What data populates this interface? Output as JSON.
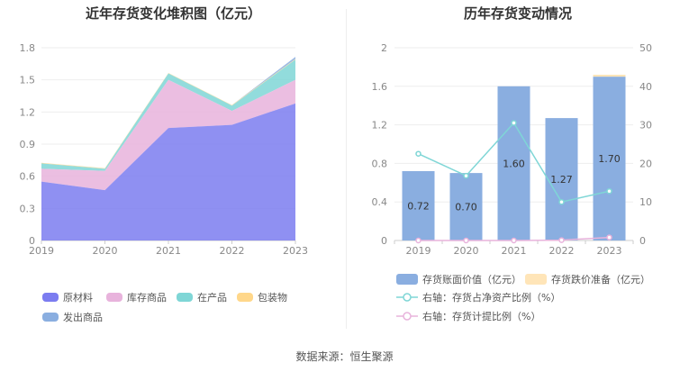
{
  "source_text": "数据来源：恒生聚源",
  "chart_data": [
    {
      "type": "area",
      "stacked": true,
      "title": "近年存货变化堆积图（亿元）",
      "x": [
        "2019",
        "2020",
        "2021",
        "2022",
        "2023"
      ],
      "y_ticks": [
        "0",
        "0.3",
        "0.6",
        "0.9",
        "1.2",
        "1.5",
        "1.8"
      ],
      "ylim": [
        0,
        1.8
      ],
      "grid": true,
      "legend_position": "bottom-left",
      "series": [
        {
          "name": "原材料",
          "color": "#7b7cf0",
          "values": [
            0.55,
            0.47,
            1.05,
            1.08,
            1.28
          ]
        },
        {
          "name": "库存商品",
          "color": "#e8b3dc",
          "values": [
            0.12,
            0.18,
            0.45,
            0.13,
            0.22
          ]
        },
        {
          "name": "在产品",
          "color": "#7fd6d6",
          "values": [
            0.05,
            0.02,
            0.06,
            0.05,
            0.19
          ]
        },
        {
          "name": "包装物",
          "color": "#ffd78a",
          "values": [
            0.005,
            0.005,
            0.005,
            0.005,
            0.005
          ]
        },
        {
          "name": "发出商品",
          "color": "#8aaee0",
          "values": [
            0.0,
            0.0,
            0.0,
            0.0,
            0.02
          ]
        }
      ]
    },
    {
      "type": "bar",
      "title": "历年存货变动情况",
      "categories": [
        "2019",
        "2020",
        "2021",
        "2022",
        "2023"
      ],
      "y_left_ticks": [
        "0",
        "0.4",
        "0.8",
        "1.2",
        "1.6",
        "2"
      ],
      "ylim_left": [
        0,
        2
      ],
      "y_right_ticks": [
        "0",
        "10",
        "20",
        "30",
        "40",
        "50"
      ],
      "ylim_right": [
        0,
        50
      ],
      "grid": true,
      "legend_position": "bottom",
      "bars": [
        {
          "name": "存货账面价值（亿元）",
          "color": "#8aaee0",
          "values": [
            0.72,
            0.7,
            1.6,
            1.27,
            1.7
          ],
          "labels": [
            "0.72",
            "0.70",
            "1.60",
            "1.27",
            "1.70"
          ]
        },
        {
          "name": "存货跌价准备（亿元）",
          "color": "#ffe5b8",
          "values": [
            0.0,
            0.0,
            0.0,
            0.0,
            0.02
          ]
        }
      ],
      "lines": [
        {
          "name": "右轴：存货占净资产比例（%）",
          "color": "#7fd6d6",
          "axis": "right",
          "values": [
            22.5,
            16.8,
            30.5,
            10.0,
            12.8
          ]
        },
        {
          "name": "右轴：存货计提比例（%）",
          "color": "#e8b3dc",
          "axis": "right",
          "values": [
            0.0,
            0.0,
            0.0,
            0.1,
            0.8
          ]
        }
      ]
    }
  ]
}
